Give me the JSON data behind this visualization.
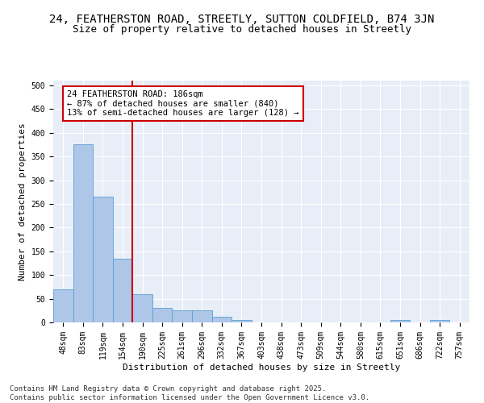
{
  "title_line1": "24, FEATHERSTON ROAD, STREETLY, SUTTON COLDFIELD, B74 3JN",
  "title_line2": "Size of property relative to detached houses in Streetly",
  "xlabel": "Distribution of detached houses by size in Streetly",
  "ylabel": "Number of detached properties",
  "bin_labels": [
    "48sqm",
    "83sqm",
    "119sqm",
    "154sqm",
    "190sqm",
    "225sqm",
    "261sqm",
    "296sqm",
    "332sqm",
    "367sqm",
    "403sqm",
    "438sqm",
    "473sqm",
    "509sqm",
    "544sqm",
    "580sqm",
    "615sqm",
    "651sqm",
    "686sqm",
    "722sqm",
    "757sqm"
  ],
  "bar_values": [
    70,
    375,
    265,
    135,
    60,
    30,
    25,
    25,
    12,
    5,
    0,
    0,
    0,
    0,
    0,
    0,
    0,
    5,
    0,
    5,
    0
  ],
  "bar_color": "#aec6e8",
  "bar_edgecolor": "#5a9fd4",
  "vline_x": 3.5,
  "vline_color": "#cc0000",
  "annotation_text": "24 FEATHERSTON ROAD: 186sqm\n← 87% of detached houses are smaller (840)\n13% of semi-detached houses are larger (128) →",
  "annotation_box_color": "#cc0000",
  "annotation_text_color": "#000000",
  "annotation_fontsize": 7.5,
  "background_color": "#e8eef7",
  "ylim": [
    0,
    510
  ],
  "yticks": [
    0,
    50,
    100,
    150,
    200,
    250,
    300,
    350,
    400,
    450,
    500
  ],
  "footer_text": "Contains HM Land Registry data © Crown copyright and database right 2025.\nContains public sector information licensed under the Open Government Licence v3.0.",
  "title_fontsize": 10,
  "subtitle_fontsize": 9,
  "axis_label_fontsize": 8,
  "tick_fontsize": 7,
  "footer_fontsize": 6.5
}
